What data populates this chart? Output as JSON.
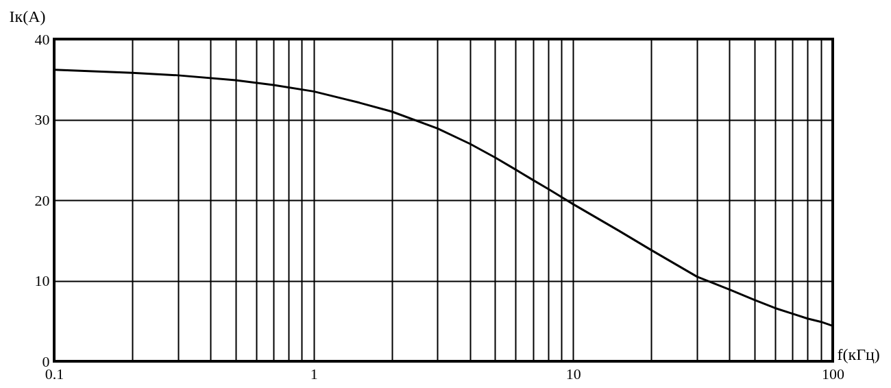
{
  "chart_data": {
    "type": "line",
    "xlabel": "f(кГц)",
    "ylabel": "Iк(A)",
    "x": [
      0.1,
      0.2,
      0.3,
      0.5,
      0.7,
      1,
      1.5,
      2,
      3,
      4,
      5,
      6,
      7,
      8,
      9,
      10,
      15,
      20,
      30,
      40,
      50,
      60,
      70,
      80,
      90,
      100
    ],
    "series": [
      {
        "color": "#000000",
        "values": [
          36.2,
          35.8,
          35.5,
          34.9,
          34.3,
          33.5,
          32.1,
          31.0,
          28.9,
          27.0,
          25.3,
          23.8,
          22.5,
          21.4,
          20.4,
          19.5,
          16.2,
          13.8,
          10.5,
          8.9,
          7.6,
          6.6,
          5.9,
          5.3,
          4.9,
          4.4
        ]
      }
    ],
    "xlim": [
      0.1,
      100
    ],
    "ylim": [
      0,
      40
    ],
    "xticks": [
      0.1,
      {
        "value": 0.2,
        "label": null
      },
      {
        "value": 0.3,
        "label": null
      },
      {
        "value": 0.4,
        "label": null
      },
      {
        "value": 0.5,
        "label": null
      },
      {
        "value": 0.6,
        "label": null
      },
      {
        "value": 0.7,
        "label": null
      },
      {
        "value": 0.8,
        "label": null
      },
      {
        "value": 0.9,
        "label": null
      },
      1,
      {
        "value": 2,
        "label": null
      },
      {
        "value": 3,
        "label": null
      },
      {
        "value": 4,
        "label": null
      },
      {
        "value": 5,
        "label": null
      },
      {
        "value": 6,
        "label": null
      },
      {
        "value": 7,
        "label": null
      },
      {
        "value": 8,
        "label": null
      },
      {
        "value": 9,
        "label": null
      },
      10,
      {
        "value": 20,
        "label": null
      },
      {
        "value": 30,
        "label": null
      },
      {
        "value": 40,
        "label": null
      },
      {
        "value": 50,
        "label": null
      },
      {
        "value": 60,
        "label": null
      },
      {
        "value": 70,
        "label": null
      },
      {
        "value": 80,
        "label": null
      },
      {
        "value": 90,
        "label": null
      },
      100
    ],
    "yticks": [
      0,
      10,
      20,
      30,
      40
    ],
    "log": "x",
    "grid": true,
    "line_style": "solid"
  }
}
